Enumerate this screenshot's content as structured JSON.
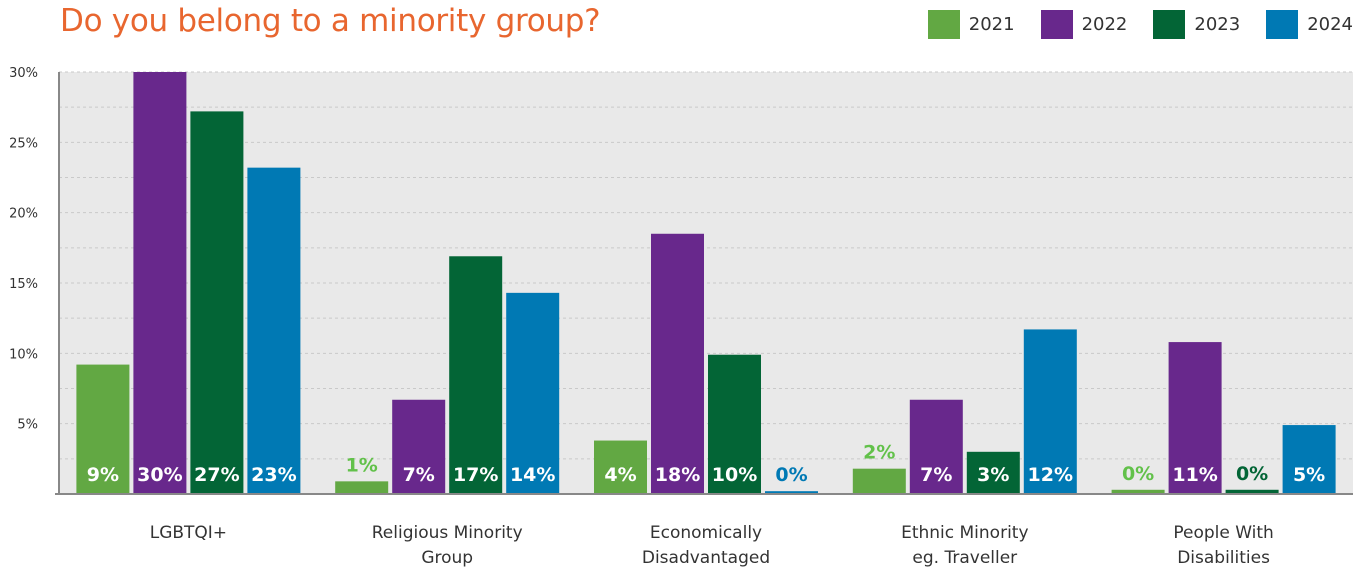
{
  "title": "Do you belong to a minority group?",
  "colors": {
    "2021": "#62a843",
    "2022": "#68288c",
    "2023": "#036536",
    "2024": "#0079b4"
  },
  "legend": [
    {
      "label": "2021",
      "color": "#62a843"
    },
    {
      "label": "2022",
      "color": "#68288c"
    },
    {
      "label": "2023",
      "color": "#036536"
    },
    {
      "label": "2024",
      "color": "#0079b4"
    }
  ],
  "chart_data": {
    "type": "bar",
    "title": "Do you belong to a minority group?",
    "categories": [
      [
        "LGBTQI+"
      ],
      [
        "Religious Minority",
        "Group"
      ],
      [
        "Economically",
        "Disadvantaged"
      ],
      [
        "Ethnic Minority",
        "eg. Traveller"
      ],
      [
        "People With",
        "Disabilities"
      ]
    ],
    "series": [
      {
        "name": "2021",
        "values": [
          9.2,
          0.9,
          3.8,
          1.8,
          0.3
        ],
        "labels": [
          "9%",
          "1%",
          "4%",
          "2%",
          "0%"
        ]
      },
      {
        "name": "2022",
        "values": [
          30.0,
          6.7,
          18.5,
          6.7,
          10.8
        ],
        "labels": [
          "30%",
          "7%",
          "18%",
          "7%",
          "11%"
        ]
      },
      {
        "name": "2023",
        "values": [
          27.2,
          16.9,
          9.9,
          3.0,
          0.3
        ],
        "labels": [
          "27%",
          "17%",
          "10%",
          "3%",
          "0%"
        ]
      },
      {
        "name": "2024",
        "values": [
          23.2,
          14.3,
          0.2,
          11.7,
          4.9
        ],
        "labels": [
          "23%",
          "14%",
          "0%",
          "12%",
          "5%"
        ]
      }
    ],
    "yticks": [
      "5%",
      "10%",
      "15%",
      "20%",
      "25%",
      "30%"
    ],
    "ylim": [
      0,
      30
    ],
    "grid": true,
    "legend_position": "top-right"
  }
}
